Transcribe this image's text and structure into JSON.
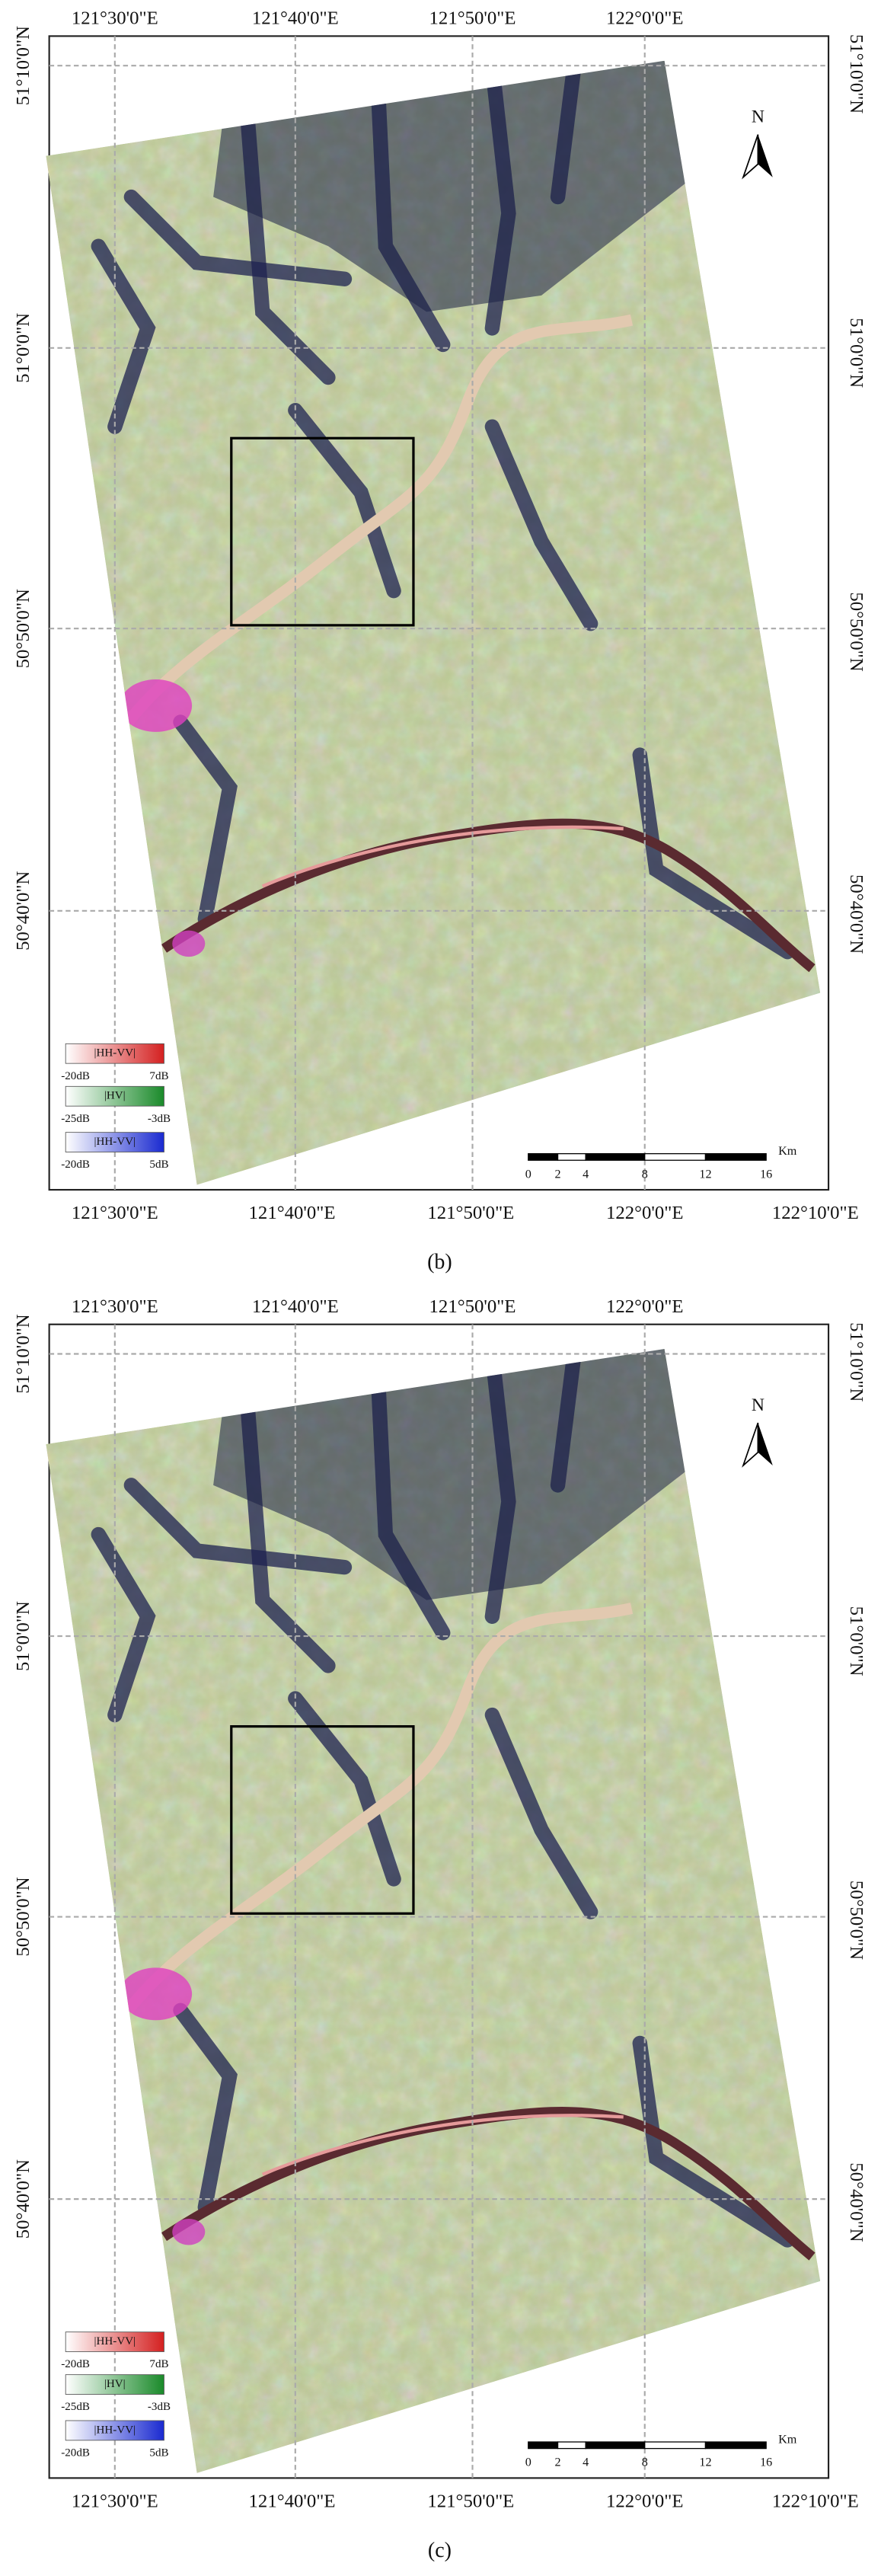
{
  "panels": [
    {
      "caption": "(b)",
      "top_labels": [
        "121°30'0\"E",
        "121°40'0\"E",
        "121°50'0\"E",
        "122°0'0\"E"
      ],
      "bottom_labels": [
        "121°30'0\"E",
        "121°40'0\"E",
        "121°50'0\"E",
        "122°0'0\"E",
        "122°10'0\"E"
      ],
      "left_labels": [
        "51°10'0\"N",
        "51°0'0\"N",
        "50°50'0\"N",
        "50°40'0\"N"
      ],
      "right_labels": [
        "51°10'0\"N",
        "51°0'0\"N",
        "50°50'0\"N",
        "50°40'0\"N"
      ],
      "north": "N",
      "legend": [
        {
          "label": "|HH-VV|",
          "min": "-20dB",
          "max": "7dB"
        },
        {
          "label": "|HV|",
          "min": "-25dB",
          "max": "-3dB"
        },
        {
          "label": "|HH-VV|",
          "min": "-20dB",
          "max": "5dB"
        }
      ],
      "scale": {
        "ticks": [
          0,
          2,
          4,
          8,
          12,
          16
        ],
        "unit": "Km"
      }
    },
    {
      "caption": "(c)",
      "top_labels": [
        "121°30'0\"E",
        "121°40'0\"E",
        "121°50'0\"E",
        "122°0'0\"E"
      ],
      "bottom_labels": [
        "121°30'0\"E",
        "121°40'0\"E",
        "121°50'0\"E",
        "122°0'0\"E",
        "122°10'0\"E"
      ],
      "left_labels": [
        "51°10'0\"N",
        "51°0'0\"N",
        "50°50'0\"N",
        "50°40'0\"N"
      ],
      "right_labels": [
        "51°10'0\"N",
        "51°0'0\"N",
        "50°50'0\"N",
        "50°40'0\"N"
      ],
      "north": "N",
      "legend": [
        {
          "label": "|HH-VV|",
          "min": "-20dB",
          "max": "7dB"
        },
        {
          "label": "|HV|",
          "min": "-25dB",
          "max": "-3dB"
        },
        {
          "label": "|HH-VV|",
          "min": "-20dB",
          "max": "5dB"
        }
      ],
      "scale": {
        "ticks": [
          0,
          2,
          4,
          8,
          12,
          16
        ],
        "unit": "Km"
      }
    }
  ]
}
